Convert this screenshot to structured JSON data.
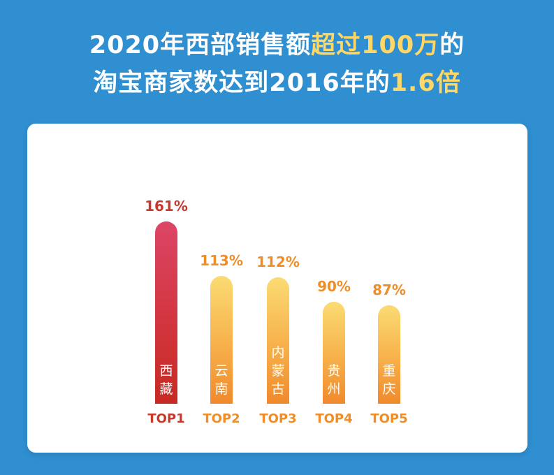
{
  "title": {
    "line1_a": "2020年西部销售额",
    "line1_hl": "超过100万",
    "line1_b": "的",
    "line2_a": "淘宝商家数达到2016年的",
    "line2_hl": "1.6倍"
  },
  "chart_data": {
    "type": "bar",
    "categories": [
      "TOP1",
      "TOP2",
      "TOP3",
      "TOP4",
      "TOP5"
    ],
    "regions": [
      "西\n藏",
      "云\n南",
      "内\n蒙\n古",
      "贵\n州",
      "重\n庆"
    ],
    "values": [
      161,
      113,
      112,
      90,
      87
    ],
    "value_labels": [
      "161%",
      "113%",
      "112%",
      "90%",
      "87%"
    ],
    "colors": {
      "top1": "#d2363e",
      "others": "#f7b04a"
    }
  }
}
